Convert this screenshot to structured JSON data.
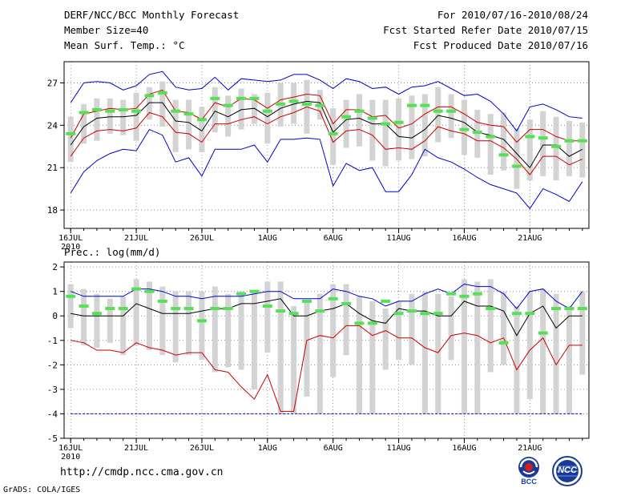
{
  "header": {
    "title": "DERF/NCC/BCC Monthly Forecast",
    "member_size": "Member Size=40",
    "variable": "Mean Surf. Temp.: °C",
    "period": "For 2010/07/16-2010/08/24",
    "started": "Fcst Started Refer Date 2010/07/15",
    "produced": "Fcst Produced Date 2010/07/16"
  },
  "footer": {
    "url": "http://cmdp.ncc.cma.gov.cn",
    "grads": "GrADS: COLA/IGES",
    "logo_bcc_text": "BCC",
    "logo_ncc_text": "NCC"
  },
  "colors": {
    "bar": "#d3d3d3",
    "mean_marker": "#55e055",
    "envelope": "#0000cc",
    "spread": "#cc0000",
    "median": "#000000"
  },
  "chart_data": [
    {
      "type": "line",
      "name": "temperature",
      "title": "Mean Surf. Temp.: °C",
      "xlabel": "",
      "ylabel": "",
      "x": [
        1,
        2,
        3,
        4,
        5,
        6,
        7,
        8,
        9,
        10,
        11,
        12,
        13,
        14,
        15,
        16,
        17,
        18,
        19,
        20,
        21,
        22,
        23,
        24,
        25,
        26,
        27,
        28,
        29,
        30,
        31,
        32,
        33,
        34,
        35,
        36,
        37,
        38,
        39,
        40
      ],
      "xlim": [
        0.5,
        40.5
      ],
      "ylim": [
        16.7,
        28.5
      ],
      "yticks": [
        18,
        21,
        24,
        27
      ],
      "ytick_labels": [
        "18",
        "21",
        "24",
        "27"
      ],
      "xtick_positions": [
        1,
        6,
        11,
        16,
        21,
        26,
        31,
        36
      ],
      "xtick_labels": [
        "16JUL",
        "21JUL",
        "26JUL",
        "1AUG",
        "6AUG",
        "11AUG",
        "16AUG",
        "21AUG"
      ],
      "year_label": "2010",
      "grid": true,
      "series": [
        {
          "name": "max",
          "color": "#0000cc",
          "values": [
            25.6,
            27,
            27.1,
            27,
            26.5,
            26.8,
            27.6,
            27.8,
            26.7,
            26.5,
            26.6,
            27.4,
            26.5,
            27.3,
            27.2,
            27.1,
            27.2,
            27.6,
            27.6,
            27.2,
            26.6,
            27.3,
            27.1,
            26.6,
            26.7,
            26.2,
            26.7,
            26.8,
            27.1,
            26.6,
            26.1,
            26.2,
            25.7,
            24.8,
            23.6,
            25.3,
            25.5,
            25.1,
            24.6,
            24.5
          ]
        },
        {
          "name": "upper",
          "color": "#cc0000",
          "values": [
            23.1,
            24.8,
            25,
            25.2,
            25.1,
            25.2,
            26.2,
            26.5,
            25,
            24.9,
            24.4,
            25.6,
            25.3,
            25.9,
            25.8,
            25.2,
            25.8,
            26,
            26.2,
            26.1,
            24.1,
            25.1,
            25.1,
            24.6,
            24.7,
            23.8,
            24.1,
            24.8,
            25.3,
            25.3,
            24.8,
            24.2,
            24,
            23.9,
            22.8,
            23.7,
            23.7,
            23.2,
            22.9,
            22.9
          ]
        },
        {
          "name": "median",
          "color": "#000000",
          "values": [
            22.6,
            23.9,
            24.5,
            24.6,
            24.6,
            24.7,
            25.6,
            25.6,
            24.3,
            24.2,
            23.6,
            25,
            24.6,
            25.1,
            25.2,
            24.6,
            25.2,
            25.5,
            25.7,
            25.6,
            23.5,
            24.4,
            24.5,
            24.1,
            24.1,
            23.2,
            23.1,
            23.7,
            24.7,
            24.5,
            24.2,
            23.5,
            23.3,
            23,
            22,
            21,
            22.6,
            22.6,
            21.8,
            22.3
          ]
        },
        {
          "name": "lower",
          "color": "#cc0000",
          "values": [
            21.8,
            23.1,
            23.6,
            23.7,
            23.6,
            23.8,
            24.9,
            24.6,
            23.5,
            23.4,
            22.8,
            24.1,
            24.1,
            24.4,
            24.6,
            24.1,
            24.6,
            24.9,
            25.3,
            25,
            22.8,
            23.6,
            23.7,
            23.3,
            22.3,
            22.4,
            22.3,
            22.9,
            23.9,
            23.6,
            23.4,
            22.9,
            22.9,
            22.4,
            21.6,
            20.5,
            21.8,
            21.8,
            21.2,
            21.6
          ]
        },
        {
          "name": "min",
          "color": "#0000cc",
          "values": [
            19.2,
            20.7,
            21.5,
            22,
            22.3,
            22.2,
            23.7,
            23.3,
            21.4,
            21.7,
            20.4,
            22.3,
            22.3,
            22.3,
            22.6,
            21.4,
            23,
            23,
            23.1,
            23,
            19.7,
            21.3,
            20.8,
            21,
            19.3,
            19.3,
            20.5,
            22.3,
            21.7,
            21.4,
            20.9,
            20.3,
            19.8,
            19.5,
            19.2,
            18.1,
            19.5,
            19.1,
            18.6,
            20
          ]
        }
      ],
      "bars": {
        "name": "ensemble range",
        "color": "#d3d3d3",
        "low": [
          21.4,
          22.7,
          22.9,
          23.4,
          23.3,
          22.9,
          24.4,
          23.9,
          22.1,
          22.3,
          22.1,
          23.5,
          23.2,
          23.7,
          24.1,
          22.7,
          23.9,
          24.1,
          23.4,
          24.4,
          21.2,
          22.4,
          22.5,
          21.5,
          21.1,
          21.5,
          21.6,
          21.8,
          22.8,
          23.1,
          21.9,
          21.7,
          20.5,
          20.8,
          19.5,
          20.1,
          20.4,
          20.1,
          20.4,
          20.3
        ],
        "high": [
          24.6,
          25.5,
          25.9,
          25.9,
          25.8,
          26.3,
          26.7,
          27.1,
          25.8,
          25.8,
          25.3,
          26.7,
          26.1,
          26.6,
          26.2,
          26.3,
          27,
          27,
          27.2,
          26.5,
          25.2,
          25.8,
          26.2,
          25.8,
          25.8,
          25.9,
          26.1,
          26.2,
          26.7,
          26.2,
          25.8,
          25.1,
          24.8,
          24.9,
          23.8,
          24.4,
          25,
          24.6,
          24.3,
          24.2
        ]
      },
      "markers": {
        "name": "ensemble mean",
        "color": "#55e055",
        "values": [
          23.4,
          24.9,
          25.1,
          25,
          25.1,
          25,
          26.1,
          26.3,
          25,
          24.8,
          24.4,
          25.9,
          25.4,
          25.9,
          25.9,
          25,
          25.5,
          25.7,
          25.5,
          25.4,
          23.4,
          24.6,
          25,
          24.5,
          24.1,
          24.2,
          25.4,
          25.4,
          25,
          25,
          23.7,
          23.5,
          23.2,
          21.9,
          21.1,
          23.2,
          23.1,
          22.5,
          22.9,
          22.9
        ]
      }
    },
    {
      "type": "line",
      "name": "precipitation",
      "title": "Prec.: log(mm/d)",
      "xlabel": "",
      "ylabel": "",
      "x": [
        1,
        2,
        3,
        4,
        5,
        6,
        7,
        8,
        9,
        10,
        11,
        12,
        13,
        14,
        15,
        16,
        17,
        18,
        19,
        20,
        21,
        22,
        23,
        24,
        25,
        26,
        27,
        28,
        29,
        30,
        31,
        32,
        33,
        34,
        35,
        36,
        37,
        38,
        39,
        40
      ],
      "xlim": [
        0.5,
        40.5
      ],
      "ylim": [
        -5,
        2.2
      ],
      "yticks": [
        -5,
        -4,
        -3,
        -2,
        -1,
        0,
        1,
        2
      ],
      "ytick_labels": [
        "-5",
        "-4",
        "-3",
        "-2",
        "-1",
        "0",
        "1",
        "2"
      ],
      "xtick_positions": [
        1,
        6,
        11,
        16,
        21,
        26,
        31,
        36
      ],
      "xtick_labels": [
        "16JUL",
        "21JUL",
        "26JUL",
        "1AUG",
        "6AUG",
        "11AUG",
        "16AUG",
        "21AUG"
      ],
      "year_label": "2010",
      "grid": true,
      "series": [
        {
          "name": "max",
          "color": "#0000cc",
          "values": [
            1,
            0.8,
            0.8,
            0.8,
            0.8,
            1.1,
            1.1,
            1,
            0.8,
            0.8,
            0.7,
            0.8,
            0.8,
            0.8,
            0.9,
            1,
            1,
            0.7,
            0.7,
            0.7,
            1.1,
            1,
            0.8,
            0.7,
            0.4,
            0.6,
            0.6,
            0.9,
            1.1,
            0.9,
            1.3,
            1.2,
            1.2,
            0.9,
            0.3,
            1,
            1.1,
            0.6,
            0.3,
            1
          ]
        },
        {
          "name": "median",
          "color": "#000000",
          "values": [
            0.1,
            0,
            0,
            0,
            0,
            0.5,
            0.3,
            0.1,
            0.1,
            0.1,
            0.2,
            0.3,
            0.3,
            0.5,
            0.5,
            0.6,
            0.7,
            0,
            0,
            0.2,
            0.3,
            0.5,
            0.1,
            -0.2,
            -0.3,
            0.3,
            0.2,
            0.2,
            0,
            0,
            0.6,
            0.4,
            0.4,
            0.2,
            -0.8,
            0.1,
            0.4,
            -0.5,
            0,
            0
          ]
        },
        {
          "name": "lower",
          "color": "#cc0000",
          "values": [
            -1,
            -1.1,
            -1.4,
            -1.4,
            -1.5,
            -1.1,
            -1.3,
            -1.4,
            -1.6,
            -1.5,
            -1.5,
            -2.2,
            -2.3,
            -2.9,
            -3.4,
            -2.4,
            -3.9,
            -3.9,
            -1,
            -0.8,
            -0.9,
            -0.4,
            -0.4,
            -0.8,
            -0.6,
            -0.9,
            -0.9,
            -1.3,
            -1.5,
            -0.8,
            -0.7,
            -0.8,
            -1.1,
            -0.9,
            -2.2,
            -1.4,
            -0.9,
            -2,
            -1.2,
            -1.2
          ]
        },
        {
          "name": "min",
          "color": "#0000cc",
          "values": [
            -4,
            -4,
            -4,
            -4,
            -4,
            -4,
            -4,
            -4,
            -4,
            -4,
            -4,
            -4,
            -4,
            -4,
            -4,
            -4,
            -4,
            -4,
            -4,
            -4,
            -4,
            -4,
            -4,
            -4,
            -4,
            -4,
            -4,
            -4,
            -4,
            -4,
            -4,
            -4,
            -4,
            -4,
            -4,
            -4,
            -4,
            -4,
            -4,
            -4
          ]
        }
      ],
      "bars": {
        "name": "ensemble range",
        "color": "#d3d3d3",
        "low": [
          -0.5,
          -1.2,
          -1.3,
          -1.1,
          -1.6,
          -1.2,
          -1.4,
          -1.6,
          -1.9,
          -1.6,
          -1.8,
          -2.3,
          -2.1,
          -2.2,
          -3,
          -1.5,
          -4,
          -4,
          -3.3,
          -4,
          -2.5,
          -1.6,
          -4,
          -4,
          -2.2,
          -1.8,
          -2,
          -4,
          -4,
          -1.8,
          -4,
          -4,
          -2.3,
          -2,
          -4,
          -3.4,
          -4,
          -4,
          -4,
          -2.4
        ],
        "high": [
          1.3,
          1.1,
          0.9,
          0.7,
          0.8,
          1.5,
          1.4,
          1.2,
          1,
          1,
          1,
          1.2,
          0.9,
          1,
          1,
          1.4,
          1.4,
          0.4,
          0.6,
          0.9,
          1.3,
          1.3,
          0.8,
          0.6,
          0.3,
          0.6,
          0.9,
          1,
          0.9,
          0.8,
          1.5,
          1.4,
          1.5,
          1,
          0.4,
          1,
          1.1,
          0.9,
          0.4,
          1
        ]
      },
      "markers": {
        "name": "ensemble mean",
        "color": "#55e055",
        "values": [
          0.8,
          0.4,
          0.1,
          0.3,
          0.3,
          1.1,
          1,
          0.6,
          0.3,
          0.3,
          -0.2,
          0.3,
          0.3,
          0.9,
          1,
          0.4,
          0.2,
          0.1,
          0.6,
          0.2,
          0.7,
          0.5,
          -0.3,
          -0.3,
          0.6,
          0.1,
          0.2,
          0.1,
          0.1,
          0.9,
          0.8,
          0.9,
          0.3,
          -1.1,
          0.1,
          0.1,
          -0.7,
          0.3,
          0.3,
          0.3
        ]
      }
    }
  ]
}
